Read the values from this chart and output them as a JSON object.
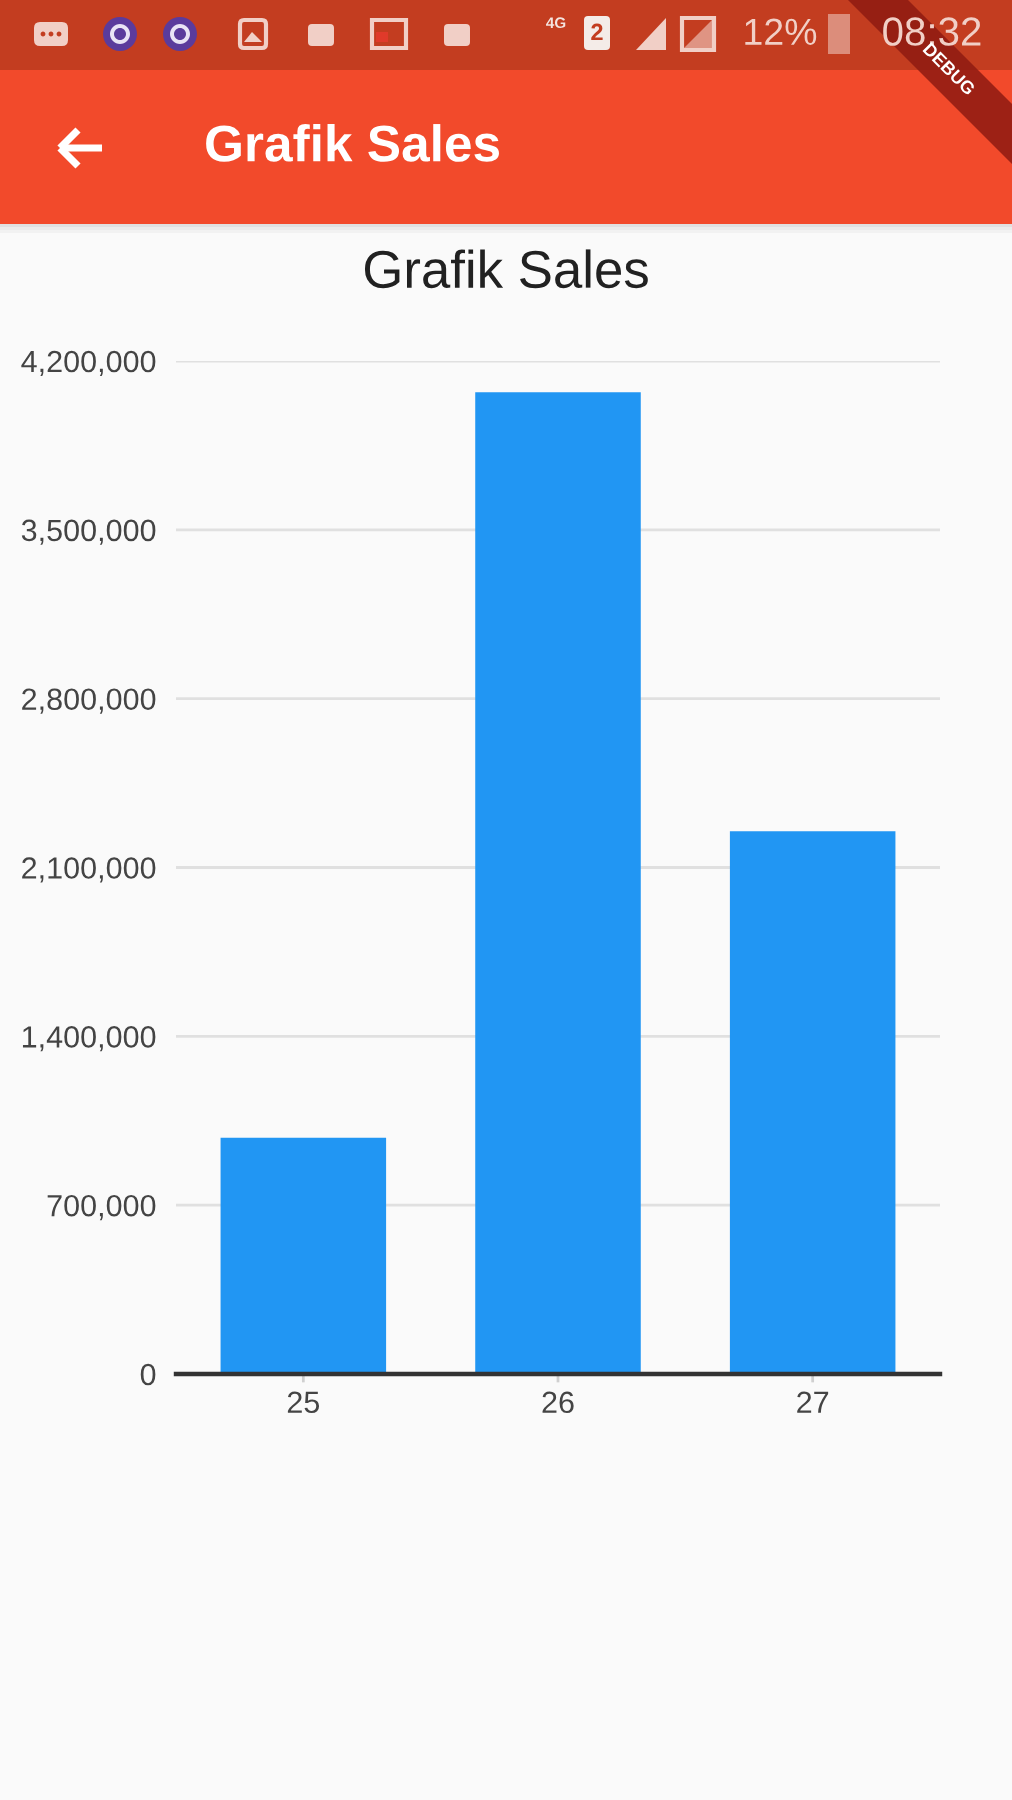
{
  "chart_data": {
    "type": "bar",
    "title": "Grafik Sales",
    "categories": [
      "25",
      "26",
      "27"
    ],
    "values": [
      980000,
      4070000,
      2250000
    ],
    "color": "#2196f3",
    "ylim": [
      0,
      4200000
    ],
    "yticks": [
      0,
      {
        "value": 700000,
        "label": "700,000"
      },
      {
        "value": 1400000,
        "label": "1,400,000"
      },
      {
        "value": 2100000,
        "label": "2,100,000"
      },
      {
        "value": 2800000,
        "label": "2,800,000"
      },
      {
        "value": 3500000,
        "label": "3,500,000"
      },
      {
        "value": 4200000,
        "label": "4,200,000"
      }
    ],
    "grid": "y",
    "annotations": [
      "Grafik Sales",
      "4G",
      "2",
      "12%",
      "08:32",
      "DEBUG"
    ]
  }
}
